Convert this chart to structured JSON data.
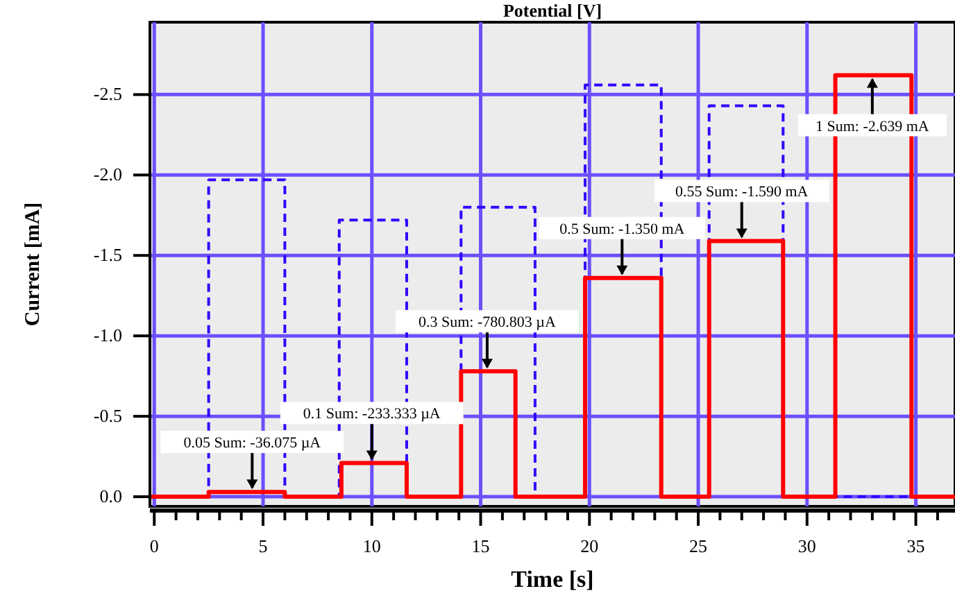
{
  "chart_data": {
    "type": "line",
    "title": "Potential [V]",
    "xlabel": "Time [s]",
    "ylabel": "Current [mA]",
    "xlim": [
      -0.2,
      36.8
    ],
    "ylim": [
      0.06,
      -2.95
    ],
    "xticks": [
      0,
      {
        "value": 1,
        "label": null
      },
      {
        "value": 2,
        "label": null
      },
      {
        "value": 3,
        "label": null
      },
      {
        "value": 4,
        "label": null
      },
      5,
      {
        "value": 6,
        "label": null
      },
      {
        "value": 7,
        "label": null
      },
      {
        "value": 8,
        "label": null
      },
      {
        "value": 9,
        "label": null
      },
      10,
      {
        "value": 11,
        "label": null
      },
      {
        "value": 12,
        "label": null
      },
      {
        "value": 13,
        "label": null
      },
      {
        "value": 14,
        "label": null
      },
      15,
      {
        "value": 16,
        "label": null
      },
      {
        "value": 17,
        "label": null
      },
      {
        "value": 18,
        "label": null
      },
      {
        "value": 19,
        "label": null
      },
      20,
      {
        "value": 21,
        "label": null
      },
      {
        "value": 22,
        "label": null
      },
      {
        "value": 23,
        "label": null
      },
      {
        "value": 24,
        "label": null
      },
      25,
      {
        "value": 26,
        "label": null
      },
      {
        "value": 27,
        "label": null
      },
      {
        "value": 28,
        "label": null
      },
      {
        "value": 29,
        "label": null
      },
      30,
      {
        "value": 31,
        "label": null
      },
      {
        "value": 32,
        "label": null
      },
      {
        "value": 33,
        "label": null
      },
      {
        "value": 34,
        "label": null
      },
      35,
      {
        "value": 36,
        "label": null
      }
    ],
    "yticks": [
      {
        "value": 0,
        "label": "0.0"
      },
      {
        "value": -0.5,
        "label": "-0.5"
      },
      {
        "value": -1,
        "label": "-1.0"
      },
      {
        "value": -1.5,
        "label": "-1.5"
      },
      {
        "value": -2,
        "label": "-2.0"
      },
      {
        "value": -2.5,
        "label": "-2.5"
      }
    ],
    "grid": true,
    "marker": "none",
    "series": [
      {
        "color": "#3300ff",
        "line_style": "dashed",
        "x": [
          -0.2,
          2.5,
          2.5,
          6.0,
          6.0,
          8.5,
          8.5,
          11.6,
          11.6,
          14.1,
          14.1,
          17.5,
          17.5,
          19.8,
          19.8,
          23.3,
          23.3,
          25.5,
          25.5,
          28.9,
          28.9,
          36.8
        ],
        "values": [
          0,
          0,
          -1.97,
          -1.97,
          0,
          0,
          -1.72,
          -1.72,
          0,
          0,
          -1.8,
          -1.8,
          0,
          0,
          -2.56,
          -2.56,
          0,
          0,
          -2.43,
          -2.43,
          0,
          0
        ]
      },
      {
        "color": "#ff0000",
        "line_style": "solid",
        "x": [
          -0.2,
          2.5,
          2.5,
          6.0,
          6.0,
          8.6,
          8.6,
          11.6,
          11.6,
          14.1,
          14.1,
          16.6,
          16.6,
          19.8,
          19.8,
          23.3,
          23.3,
          25.5,
          25.5,
          28.9,
          28.9,
          31.3,
          31.3,
          34.8,
          34.8,
          36.8
        ],
        "values": [
          0,
          0,
          -0.03,
          -0.03,
          0,
          0,
          -0.21,
          -0.21,
          0,
          0,
          -0.78,
          -0.78,
          0,
          0,
          -1.36,
          -1.36,
          0,
          0,
          -1.59,
          -1.59,
          0,
          0,
          -2.62,
          -2.62,
          0,
          0
        ]
      }
    ],
    "annotations": [
      {
        "text": "0.05 Sum: -36.075 µA",
        "x": 4.5,
        "y": -0.03
      },
      {
        "text": "0.1 Sum: -233.333 µA",
        "x": 10,
        "y": -0.21
      },
      {
        "text": "0.3 Sum: -780.803 µA",
        "x": 15.3,
        "y": -0.78
      },
      {
        "text": "0.5 Sum: -1.350 mA",
        "x": 21.5,
        "y": -1.36
      },
      {
        "text": "0.55 Sum: -1.590 mA",
        "x": 27,
        "y": -1.59
      },
      {
        "text": "1 Sum: -2.639 mA",
        "x": 33,
        "y": -2.62
      }
    ]
  }
}
